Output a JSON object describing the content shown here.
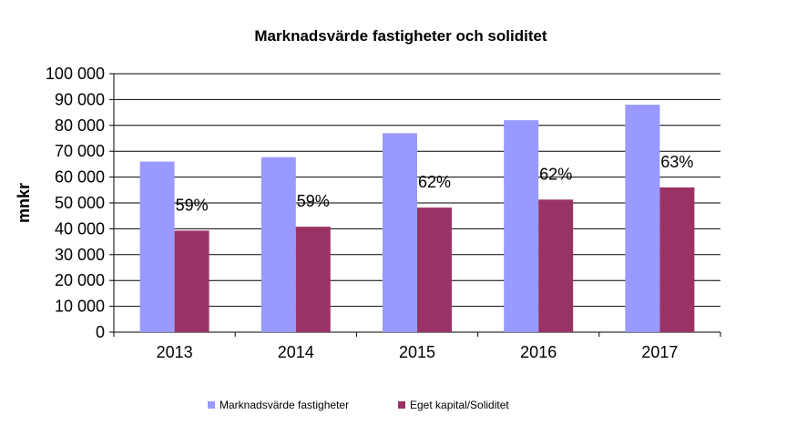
{
  "chart_data": {
    "type": "bar",
    "title": "Marknadsvärde fastigheter och soliditet",
    "xlabel": "",
    "ylabel": "mnkr",
    "categories": [
      "2013",
      "2014",
      "2015",
      "2016",
      "2017"
    ],
    "ylim": [
      0,
      100000
    ],
    "yticks": [
      0,
      10000,
      20000,
      30000,
      40000,
      50000,
      60000,
      70000,
      80000,
      90000,
      100000
    ],
    "ytick_labels": [
      "0",
      "10 000",
      "20 000",
      "30 000",
      "40 000",
      "50 000",
      "60 000",
      "70 000",
      "80 000",
      "90 000",
      "100 000"
    ],
    "grid": true,
    "legend_position": "bottom",
    "series": [
      {
        "name": "Marknadsvärde fastigheter",
        "color": "#9999ff",
        "values": [
          66000,
          67700,
          77000,
          82000,
          88000
        ]
      },
      {
        "name": "Eget kapital/Soliditet",
        "color": "#993366",
        "values": [
          39300,
          40800,
          48200,
          51300,
          56000
        ],
        "labels": [
          "59%",
          "59%",
          "62%",
          "62%",
          "63%"
        ]
      }
    ]
  }
}
